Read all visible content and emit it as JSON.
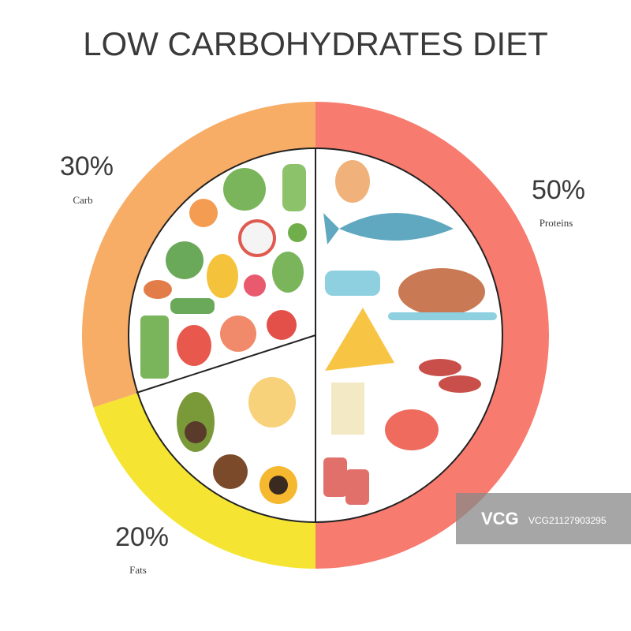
{
  "chart_data": {
    "type": "pie",
    "title": "LOW CARBOHYDRATES DIET",
    "categories": [
      "Proteins",
      "Fats",
      "Carb"
    ],
    "values": [
      50,
      20,
      30
    ],
    "value_labels": [
      "50%",
      "20%",
      "30%"
    ],
    "colors": [
      "#f77b6e",
      "#f5e532",
      "#f8ad66"
    ]
  },
  "watermark": {
    "logo": "VCG",
    "id": "VCG21127903295"
  }
}
